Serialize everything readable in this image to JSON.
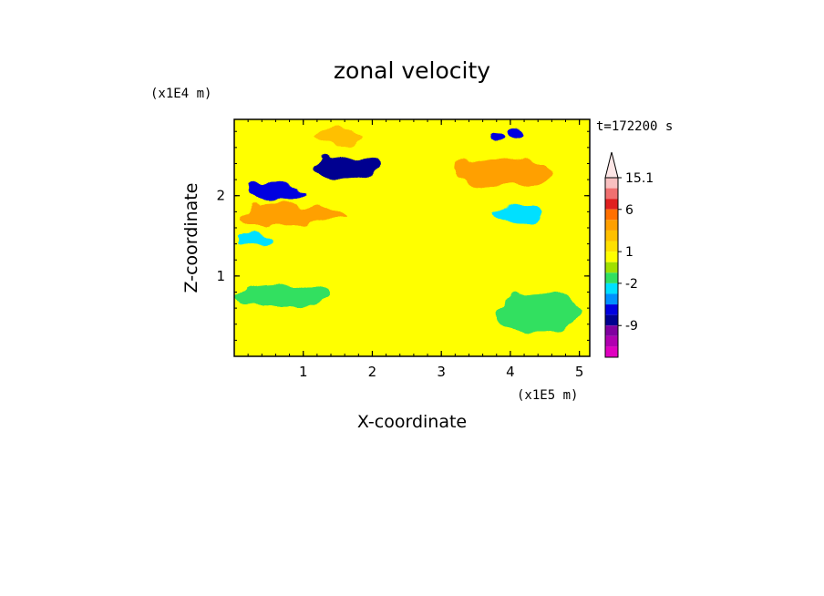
{
  "chart_data": {
    "type": "heatmap",
    "title": "zonal velocity",
    "xlabel": "X-coordinate",
    "ylabel": "Z-coordinate",
    "x_scale_label": "(x1E5 m)",
    "y_scale_label": "(x1E4 m)",
    "time_label": "t=172200 s",
    "xlim": [
      0,
      5.15
    ],
    "ylim": [
      0,
      2.95
    ],
    "x_ticks": [
      1,
      2,
      3,
      4,
      5
    ],
    "y_ticks": [
      1,
      2
    ],
    "colorbar": {
      "labels": [
        {
          "value": 15.1,
          "text": "15.1"
        },
        {
          "value": 6,
          "text": "6"
        },
        {
          "value": 1,
          "text": "1"
        },
        {
          "value": -2,
          "text": "-2"
        },
        {
          "value": -9,
          "text": "-9"
        }
      ],
      "levels": [
        {
          "upper": 15.1,
          "color": "#f8c0c0"
        },
        {
          "upper": 12,
          "color": "#f07070"
        },
        {
          "upper": 9,
          "color": "#e02020"
        },
        {
          "upper": 6,
          "color": "#ff7000"
        },
        {
          "upper": 4,
          "color": "#ffa000"
        },
        {
          "upper": 3,
          "color": "#ffc000"
        },
        {
          "upper": 2,
          "color": "#ffe000"
        },
        {
          "upper": 1,
          "color": "#ffff00"
        },
        {
          "upper": 0,
          "color": "#a0e000"
        },
        {
          "upper": -1,
          "color": "#30e060"
        },
        {
          "upper": -2,
          "color": "#00e0ff"
        },
        {
          "upper": -3,
          "color": "#0090ff"
        },
        {
          "upper": -5,
          "color": "#0000e0"
        },
        {
          "upper": -7,
          "color": "#000090"
        },
        {
          "upper": -9,
          "color": "#8000a0"
        },
        {
          "upper": -11,
          "color": "#b000b0"
        },
        {
          "upper": -13,
          "color": "#e000c0"
        }
      ]
    },
    "features": [
      {
        "x": 1.6,
        "z": 2.35,
        "value": -8,
        "rx": 0.45,
        "rz": 0.14
      },
      {
        "x": 0.65,
        "z": 2.05,
        "value": -6,
        "rx": 0.45,
        "rz": 0.12
      },
      {
        "x": 3.8,
        "z": 2.73,
        "value": -6,
        "rx": 0.12,
        "rz": 0.1
      },
      {
        "x": 4.1,
        "z": 2.78,
        "value": -5,
        "rx": 0.12,
        "rz": 0.08
      },
      {
        "x": 0.85,
        "z": 1.75,
        "value": 3.5,
        "rx": 0.8,
        "rz": 0.12
      },
      {
        "x": 3.9,
        "z": 2.28,
        "value": 3.5,
        "rx": 0.7,
        "rz": 0.18
      },
      {
        "x": 1.5,
        "z": 2.72,
        "value": 3,
        "rx": 0.35,
        "rz": 0.1
      },
      {
        "x": 0.3,
        "z": 1.45,
        "value": -2.5,
        "rx": 0.25,
        "rz": 0.07
      },
      {
        "x": 4.1,
        "z": 1.78,
        "value": -2.5,
        "rx": 0.35,
        "rz": 0.1
      },
      {
        "x": 0.7,
        "z": 0.75,
        "value": -1,
        "rx": 0.7,
        "rz": 0.15
      },
      {
        "x": 4.4,
        "z": 0.55,
        "value": -1,
        "rx": 0.6,
        "rz": 0.25
      }
    ]
  }
}
